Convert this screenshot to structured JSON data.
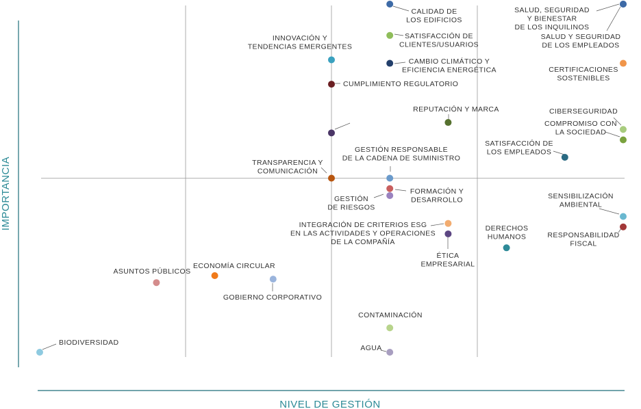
{
  "chart_data": {
    "type": "scatter",
    "xlabel": "NIVEL DE GESTIÓN",
    "ylabel": "IMPORTANCIA",
    "xlim": [
      0,
      100
    ],
    "ylim": [
      0,
      100
    ],
    "grid": true,
    "colors": {
      "axis_title": "#2c8a96",
      "axis_line": "#1f6e7a",
      "grid": "#9a9a9a",
      "label_text": "#333333",
      "leader": "#555555"
    },
    "points": [
      {
        "label": [
          "CALIDAD DE",
          "LOS EDIFICIOS"
        ],
        "x": 60,
        "y": 100,
        "color": "#3d6aa6"
      },
      {
        "label": [
          "SALUD, SEGURIDAD",
          "Y BIENESTAR",
          "DE LOS INQUILINOS"
        ],
        "x": 100,
        "y": 100,
        "color": "#3d6aa6"
      },
      {
        "label": [
          "SATISFACCIÓN DE",
          "CLIENTES/USUARIOS"
        ],
        "x": 60,
        "y": 91,
        "color": "#8fbd5a"
      },
      {
        "label": [
          "SALUD Y SEGURIDAD",
          "DE LOS EMPLEADOS"
        ],
        "x": 100,
        "y": 100,
        "color": "#3d6aa6"
      },
      {
        "label": [
          "INNOVACIÓN Y",
          "TENDENCIAS EMERGENTES"
        ],
        "x": 50,
        "y": 84,
        "color": "#3aa1bf"
      },
      {
        "label": [
          "CAMBIO CLIMÁTICO Y",
          "EFICIENCIA ENERGÉTICA"
        ],
        "x": 60,
        "y": 83,
        "color": "#233f6b"
      },
      {
        "label": [
          "CERTIFICACIONES",
          "SOSTENIBLES"
        ],
        "x": 100,
        "y": 83,
        "color": "#f0954a"
      },
      {
        "label": [
          "CUMPLIMIENTO REGULATORIO"
        ],
        "x": 50,
        "y": 77,
        "color": "#6b1f22"
      },
      {
        "label": [
          "REPUTACIÓN Y MARCA"
        ],
        "x": 70,
        "y": 66,
        "color": "#56712f"
      },
      {
        "label": [
          "CIBERSEGURIDAD"
        ],
        "x": 100,
        "y": 64,
        "color": "#a8cc7e"
      },
      {
        "label": [
          "COMPROMISO CON",
          "LA SOCIEDAD"
        ],
        "x": 100,
        "y": 61,
        "color": "#7aa23e"
      },
      {
        "label": [],
        "x": 50,
        "y": 63,
        "color": "#4a3566"
      },
      {
        "label": [
          "SATISFACCIÓN DE",
          "LOS EMPLEADOS"
        ],
        "x": 90,
        "y": 56,
        "color": "#2a6a82"
      },
      {
        "label": [
          "GESTIÓN RESPONSABLE",
          "DE LA CADENA DE SUMINISTRO"
        ],
        "x": 60,
        "y": 50,
        "color": "#6a9acb"
      },
      {
        "label": [
          "TRANSPARENCIA Y",
          "COMUNICACIÓN"
        ],
        "x": 50,
        "y": 50,
        "color": "#b8560f"
      },
      {
        "label": [
          "FORMACIÓN Y",
          "DESARROLLO"
        ],
        "x": 60,
        "y": 47,
        "color": "#c85f5f"
      },
      {
        "label": [
          "GESTIÓN",
          "DE RIESGOS"
        ],
        "x": 60,
        "y": 45,
        "color": "#9a82bf"
      },
      {
        "label": [
          "SENSIBILIZACIÓN",
          "AMBIENTAL"
        ],
        "x": 100,
        "y": 39,
        "color": "#6ab8d0"
      },
      {
        "label": [
          "INTEGRACIÓN DE CRITERIOS ESG",
          "EN LAS ACTIVIDADES Y OPERACIONES",
          "DE LA COMPAÑÍA"
        ],
        "x": 70,
        "y": 37,
        "color": "#f2ac70"
      },
      {
        "label": [
          "RESPONSABILIDAD",
          "FISCAL"
        ],
        "x": 100,
        "y": 36,
        "color": "#a23838"
      },
      {
        "label": [
          "ÉTICA",
          "EMPRESARIAL"
        ],
        "x": 70,
        "y": 34,
        "color": "#5c4682"
      },
      {
        "label": [
          "DERECHOS",
          "HUMANOS"
        ],
        "x": 80,
        "y": 30,
        "color": "#2e8a98"
      },
      {
        "label": [
          "ECONOMÍA CIRCULAR"
        ],
        "x": 30,
        "y": 22,
        "color": "#f07a1a"
      },
      {
        "label": [
          "ASUNTOS PÚBLICOS"
        ],
        "x": 20,
        "y": 20,
        "color": "#d48c8c"
      },
      {
        "label": [
          "GOBIERNO CORPORATIVO"
        ],
        "x": 40,
        "y": 21,
        "color": "#9ab4dc"
      },
      {
        "label": [
          "CONTAMINACIÓN"
        ],
        "x": 60,
        "y": 7,
        "color": "#b8d48c"
      },
      {
        "label": [
          "BIODIVERSIDAD"
        ],
        "x": 0,
        "y": 0,
        "color": "#8ecae0"
      },
      {
        "label": [
          "AGUA"
        ],
        "x": 60,
        "y": 0,
        "color": "#a89ec0"
      }
    ]
  }
}
